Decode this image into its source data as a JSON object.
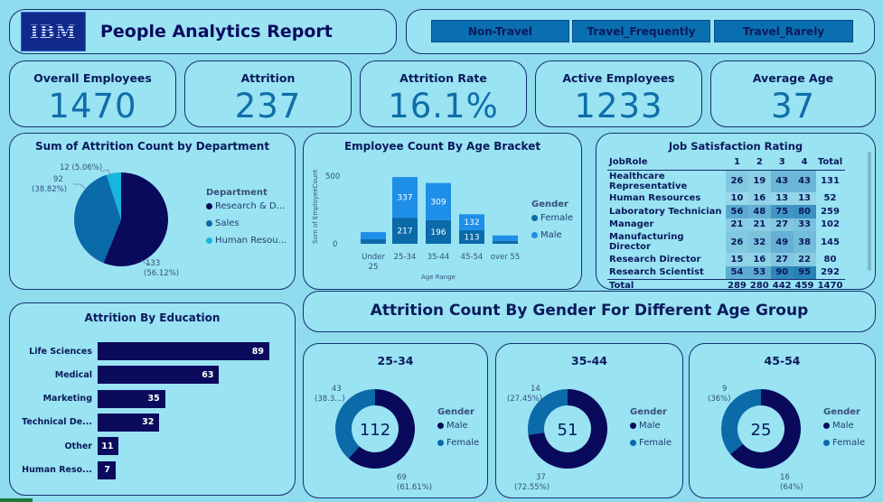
{
  "header": {
    "logo_text": "IBM",
    "title": "People Analytics Report",
    "travel_filters": [
      "Non-Travel",
      "Travel_Frequently",
      "Travel_Rarely"
    ]
  },
  "kpis": [
    {
      "label": "Overall Employees",
      "value": "1470"
    },
    {
      "label": "Attrition",
      "value": "237"
    },
    {
      "label": "Attrition Rate",
      "value": "16.1%"
    },
    {
      "label": "Active Employees",
      "value": "1233"
    },
    {
      "label": "Average Age",
      "value": "37"
    }
  ],
  "department_pie": {
    "title": "Sum of Attrition Count by Department",
    "legend_title": "Department",
    "legend": [
      "Research & D...",
      "Sales",
      "Human Resou..."
    ],
    "labels": {
      "hr": "12 (5.06%)",
      "sales_value": "92",
      "sales_pct": "(38.82%)",
      "rd_value": "133",
      "rd_pct": "(56.12%)"
    },
    "colors": {
      "rd": "#0a0a5c",
      "sales": "#0b6aa8",
      "hr": "#17b5e0"
    }
  },
  "age_bracket": {
    "title": "Employee Count By Age Bracket",
    "ylabel": "Sum of EmployeeCount",
    "xlabel": "Age Range",
    "yticks": [
      "500",
      "0"
    ],
    "legend_title": "Gender",
    "legend": [
      "Female",
      "Male"
    ],
    "cat_labels": [
      "Under 25",
      "25-34",
      "35-44",
      "45-54",
      "over 55"
    ],
    "seg_labels": {
      "female": [
        "",
        "217",
        "196",
        "113",
        ""
      ],
      "male": [
        "",
        "337",
        "309",
        "132",
        ""
      ]
    }
  },
  "chart_data": [
    {
      "type": "pie",
      "title": "Sum of Attrition Count by Department",
      "categories": [
        "Research & Development",
        "Sales",
        "Human Resources"
      ],
      "values": [
        133,
        92,
        12
      ],
      "percentages": [
        56.12,
        38.82,
        5.06
      ]
    },
    {
      "type": "bar",
      "title": "Employee Count By Age Bracket",
      "categories": [
        "Under 25",
        "25-34",
        "35-44",
        "45-54",
        "over 55"
      ],
      "series": [
        {
          "name": "Female",
          "values": [
            38,
            217,
            196,
            113,
            25
          ]
        },
        {
          "name": "Male",
          "values": [
            59,
            337,
            309,
            132,
            44
          ]
        }
      ],
      "xlabel": "Age Range",
      "ylabel": "Sum of EmployeeCount",
      "ylim": [
        0,
        600
      ]
    },
    {
      "type": "bar",
      "title": "Attrition By Education",
      "categories": [
        "Life Sciences",
        "Medical",
        "Marketing",
        "Technical De...",
        "Other",
        "Human Reso..."
      ],
      "values": [
        89,
        63,
        35,
        32,
        11,
        7
      ]
    },
    {
      "type": "pie",
      "title": "25-34",
      "categories": [
        "Male",
        "Female"
      ],
      "values": [
        69,
        43
      ],
      "total": 112
    },
    {
      "type": "pie",
      "title": "35-44",
      "categories": [
        "Male",
        "Female"
      ],
      "values": [
        37,
        14
      ],
      "total": 51
    },
    {
      "type": "pie",
      "title": "45-54",
      "categories": [
        "Male",
        "Female"
      ],
      "values": [
        16,
        9
      ],
      "total": 25
    }
  ],
  "job_satisfaction": {
    "title": "Job Satisfaction Rating",
    "headers": [
      "JobRole",
      "1",
      "2",
      "3",
      "4",
      "Total"
    ],
    "rows": [
      [
        "Healthcare Representative",
        "26",
        "19",
        "43",
        "43",
        "131"
      ],
      [
        "Human Resources",
        "10",
        "16",
        "13",
        "13",
        "52"
      ],
      [
        "Laboratory Technician",
        "56",
        "48",
        "75",
        "80",
        "259"
      ],
      [
        "Manager",
        "21",
        "21",
        "27",
        "33",
        "102"
      ],
      [
        "Manufacturing Director",
        "26",
        "32",
        "49",
        "38",
        "145"
      ],
      [
        "Research Director",
        "15",
        "16",
        "27",
        "22",
        "80"
      ],
      [
        "Research Scientist",
        "54",
        "53",
        "90",
        "95",
        "292"
      ]
    ],
    "total_row": [
      "Total",
      "289",
      "280",
      "442",
      "459",
      "1470"
    ]
  },
  "education": {
    "title": "Attrition By Education",
    "labels": [
      "Life Sciences",
      "Medical",
      "Marketing",
      "Technical De...",
      "Other",
      "Human Reso..."
    ],
    "values": [
      "89",
      "63",
      "35",
      "32",
      "11",
      "7"
    ]
  },
  "gender_banner": {
    "title": "Attrition Count By Gender For Different Age Group"
  },
  "donuts": [
    {
      "title": "25-34",
      "center": "112",
      "female_value": "43",
      "female_pct": "(38.3...)",
      "male_value": "69",
      "male_pct": "(61.61%)"
    },
    {
      "title": "35-44",
      "center": "51",
      "female_value": "14",
      "female_pct": "(27.45%)",
      "male_value": "37",
      "male_pct": "(72.55%)"
    },
    {
      "title": "45-54",
      "center": "25",
      "female_value": "9",
      "female_pct": "(36%)",
      "male_value": "16",
      "male_pct": "(64%)"
    }
  ],
  "donut_legend": {
    "title": "Gender",
    "items": [
      "Male",
      "Female"
    ]
  },
  "colors": {
    "navy": "#0a0a5c",
    "blue": "#0b6aa8",
    "light_blue": "#1e8fe8",
    "cyan": "#17b5e0",
    "card": "#99e3f3",
    "background": "#8fdcee"
  }
}
